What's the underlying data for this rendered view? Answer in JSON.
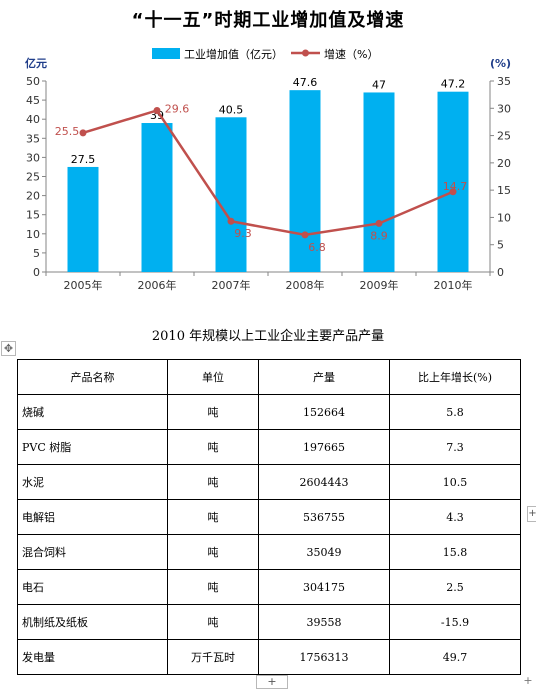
{
  "chart_data": {
    "type": "bar",
    "title": "“十一五”时期工业增加值及增速",
    "categories": [
      "2005年",
      "2006年",
      "2007年",
      "2008年",
      "2009年",
      "2010年"
    ],
    "left_axis_label": "亿元",
    "right_axis_label": "(%)",
    "ylim": [
      0,
      50
    ],
    "y2lim": [
      0,
      35
    ],
    "left_ticks": [
      0,
      5,
      10,
      15,
      20,
      25,
      30,
      35,
      40,
      45,
      50
    ],
    "right_ticks": [
      0,
      5,
      10,
      15,
      20,
      25,
      30,
      35
    ],
    "legend_position": "top",
    "series": [
      {
        "name": "工业增加值（亿元）",
        "type": "bar",
        "axis": "left",
        "color": "#00b0f0",
        "values": [
          27.5,
          39,
          40.5,
          47.6,
          47,
          47.2
        ],
        "labels": [
          "27.5",
          "39",
          "40.5",
          "47.6",
          "47",
          "47.2"
        ]
      },
      {
        "name": "增速（%）",
        "type": "line",
        "axis": "right",
        "color": "#c0504d",
        "values": [
          25.5,
          29.6,
          9.3,
          6.8,
          8.9,
          14.7
        ],
        "labels": [
          "25.5",
          "29.6",
          "9.3",
          "6.8",
          "8.9",
          "14.7"
        ]
      }
    ]
  },
  "table": {
    "title": "2010 年规模以上工业企业主要产品产量",
    "headers": [
      "产品名称",
      "单位",
      "产量",
      "比上年增长(%)"
    ],
    "rows": [
      [
        "烧碱",
        "吨",
        "152664",
        "5.8"
      ],
      [
        "PVC 树脂",
        "吨",
        "197665",
        "7.3"
      ],
      [
        "水泥",
        "吨",
        "2604443",
        "10.5"
      ],
      [
        "电解铝",
        "吨",
        "536755",
        "4.3"
      ],
      [
        "混合饲料",
        "吨",
        "35049",
        "15.8"
      ],
      [
        "电石",
        "吨",
        "304175",
        "2.5"
      ],
      [
        "机制纸及纸板",
        "吨",
        "39558",
        "-15.9"
      ],
      [
        "发电量",
        "万千瓦时",
        "1756313",
        "49.7"
      ]
    ]
  },
  "ui": {
    "move_icon": "four-arrows-icon",
    "plus_glyph": "+"
  }
}
